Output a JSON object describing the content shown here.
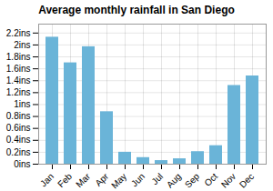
{
  "chart_data": {
    "type": "bar",
    "title": "Average monthly rainfall in San Diego",
    "categories": [
      "Jan",
      "Feb",
      "Mar",
      "Apr",
      "May",
      "Jun",
      "Jul",
      "Aug",
      "Sep",
      "Oct",
      "Nov",
      "Dec"
    ],
    "values": [
      2.13,
      1.7,
      1.97,
      0.88,
      0.2,
      0.11,
      0.06,
      0.09,
      0.21,
      0.31,
      1.32,
      1.48
    ],
    "color": "#6ab4d8",
    "ylim": [
      0,
      2.35
    ],
    "yticks": [
      {
        "value": 0,
        "label": "0ins"
      },
      {
        "value": 0.2,
        "label": "0.2ins"
      },
      {
        "value": 0.4,
        "label": "0.4ins"
      },
      {
        "value": 0.6,
        "label": "0.6ins"
      },
      {
        "value": 0.8,
        "label": "0.8ins"
      },
      {
        "value": 1.0,
        "label": "1ins"
      },
      {
        "value": 1.2,
        "label": "1.2ins"
      },
      {
        "value": 1.4,
        "label": "1.4ins"
      },
      {
        "value": 1.6,
        "label": "1.6ins"
      },
      {
        "value": 1.8,
        "label": "1.8ins"
      },
      {
        "value": 2.0,
        "label": "2ins"
      },
      {
        "value": 2.2,
        "label": "2.2ins"
      }
    ],
    "grid": true
  }
}
